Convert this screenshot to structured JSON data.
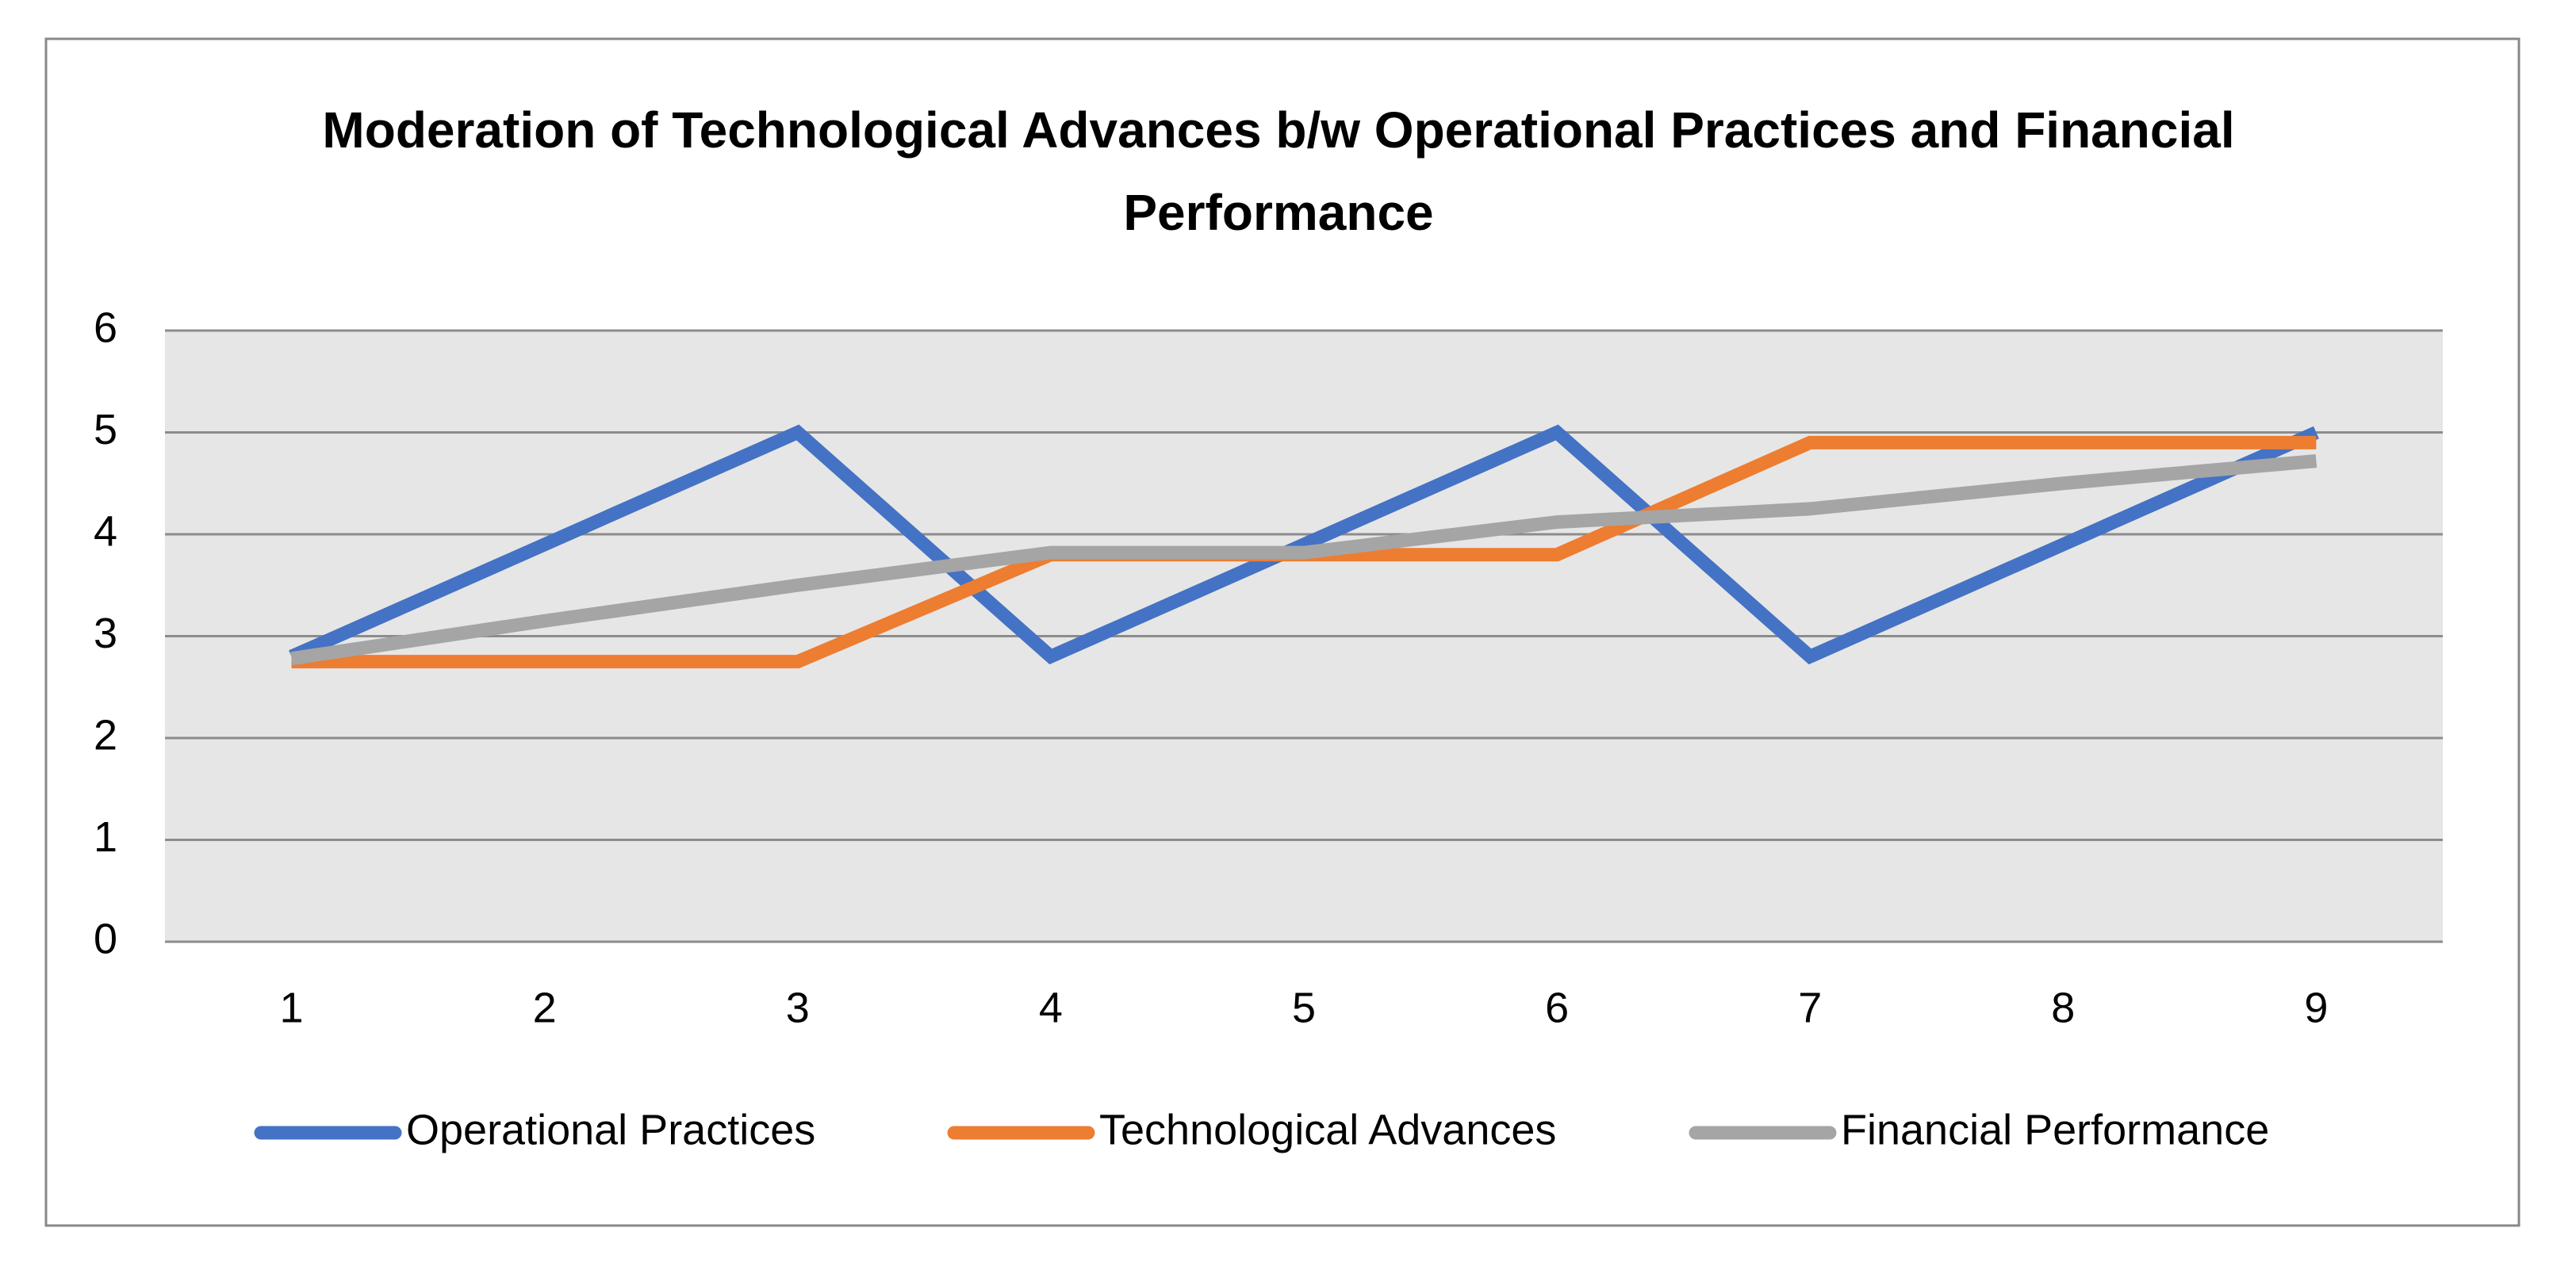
{
  "chart_data": {
    "type": "line",
    "title": "Moderation of Technological Advances b/w Operational Practices and Financial Performance",
    "categories": [
      "1",
      "2",
      "3",
      "4",
      "5",
      "6",
      "7",
      "8",
      "9"
    ],
    "series": [
      {
        "name": "Operational Practices",
        "color": "#4472c4",
        "values": [
          2.8,
          3.9,
          5.0,
          2.8,
          3.9,
          5.0,
          2.8,
          3.9,
          5.0
        ]
      },
      {
        "name": "Technological Advances",
        "color": "#ed7d31",
        "values": [
          2.75,
          2.75,
          2.75,
          3.8,
          3.8,
          3.8,
          4.9,
          4.9,
          4.9
        ]
      },
      {
        "name": "Financial Performance",
        "color": "#a5a5a5",
        "values": [
          2.78,
          3.15,
          3.5,
          3.82,
          3.82,
          4.12,
          4.25,
          4.5,
          4.72
        ]
      }
    ],
    "ylim": [
      0,
      6
    ],
    "yticks": [
      0,
      1,
      2,
      3,
      4,
      5,
      6
    ],
    "grid": true,
    "legend": "bottom"
  }
}
